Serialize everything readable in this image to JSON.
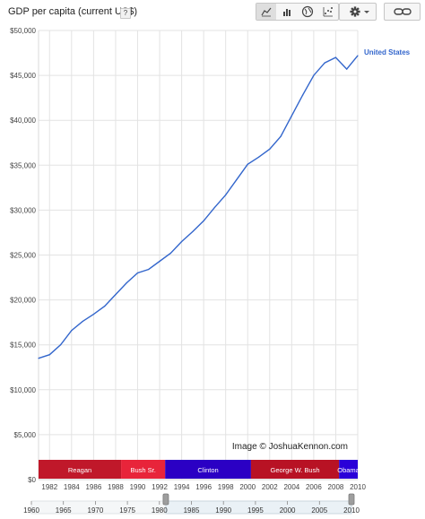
{
  "header": {
    "title": "GDP per capita (current US$)",
    "help_label": "?",
    "view_buttons": [
      "line-chart-icon",
      "bar-chart-icon",
      "map-icon",
      "scatter-chart-icon"
    ],
    "settings_icon": "gear-icon",
    "link_icon": "link-icon"
  },
  "colors": {
    "line": "#3366cc",
    "grid": "#e3e3e3",
    "reagan": "#c0182a",
    "bush_sr": "#e8243a",
    "clinton": "#2b00c4",
    "george_w_bush": "#b81224",
    "obama": "#2a00d8",
    "timeline_bg": "#f5f7f8",
    "timeline_window": "#eaf1f6"
  },
  "chart_data": {
    "type": "line",
    "series_label": "United States",
    "x": [
      1981,
      1982,
      1983,
      1984,
      1985,
      1986,
      1987,
      1988,
      1989,
      1990,
      1991,
      1992,
      1993,
      1994,
      1995,
      1996,
      1997,
      1998,
      1999,
      2000,
      2001,
      2002,
      2003,
      2004,
      2005,
      2006,
      2007,
      2008,
      2009,
      2010
    ],
    "values": [
      13500,
      13900,
      15000,
      16600,
      17600,
      18400,
      19300,
      20600,
      21900,
      23000,
      23400,
      24300,
      25200,
      26500,
      27600,
      28800,
      30300,
      31700,
      33400,
      35100,
      35900,
      36800,
      38200,
      40500,
      42800,
      45000,
      46400,
      47000,
      45700,
      47200
    ],
    "ylim": [
      0,
      50000
    ],
    "xlim": [
      1981,
      2010
    ],
    "y_ticks": [
      "$0",
      "$5,000",
      "$10,000",
      "$15,000",
      "$20,000",
      "$25,000",
      "$30,000",
      "$35,000",
      "$40,000",
      "$45,000",
      "$50,000"
    ],
    "y_tick_values": [
      0,
      5000,
      10000,
      15000,
      20000,
      25000,
      30000,
      35000,
      40000,
      45000,
      50000
    ],
    "x_ticks": [
      "1982",
      "1984",
      "1986",
      "1988",
      "1990",
      "1992",
      "1994",
      "1996",
      "1998",
      "2000",
      "2002",
      "2004",
      "2006",
      "2008",
      "2010"
    ],
    "x_tick_values": [
      1982,
      1984,
      1986,
      1988,
      1990,
      1992,
      1994,
      1996,
      1998,
      2000,
      2002,
      2004,
      2006,
      2008,
      2010
    ],
    "grid": true,
    "presidencies": [
      {
        "label": "Reagan",
        "start": 1981,
        "end": 1988.5
      },
      {
        "label": "Bush Sr.",
        "start": 1988.5,
        "end": 1992.5
      },
      {
        "label": "Clinton",
        "start": 1992.5,
        "end": 2000.3
      },
      {
        "label": "George W. Bush",
        "start": 2000.3,
        "end": 2008.3
      },
      {
        "label": "Obama",
        "start": 2008.3,
        "end": 2010
      }
    ],
    "watermark": "Image © JoshuaKennon.com",
    "timeline": {
      "labels": [
        "1960",
        "1965",
        "1970",
        "1975",
        "1980",
        "1985",
        "1990",
        "1995",
        "2000",
        "2005",
        "2010"
      ],
      "values": [
        1960,
        1965,
        1970,
        1975,
        1980,
        1985,
        1990,
        1995,
        2000,
        2005,
        2010
      ],
      "range": [
        1960,
        2010
      ],
      "window": [
        1981,
        2010
      ]
    }
  }
}
